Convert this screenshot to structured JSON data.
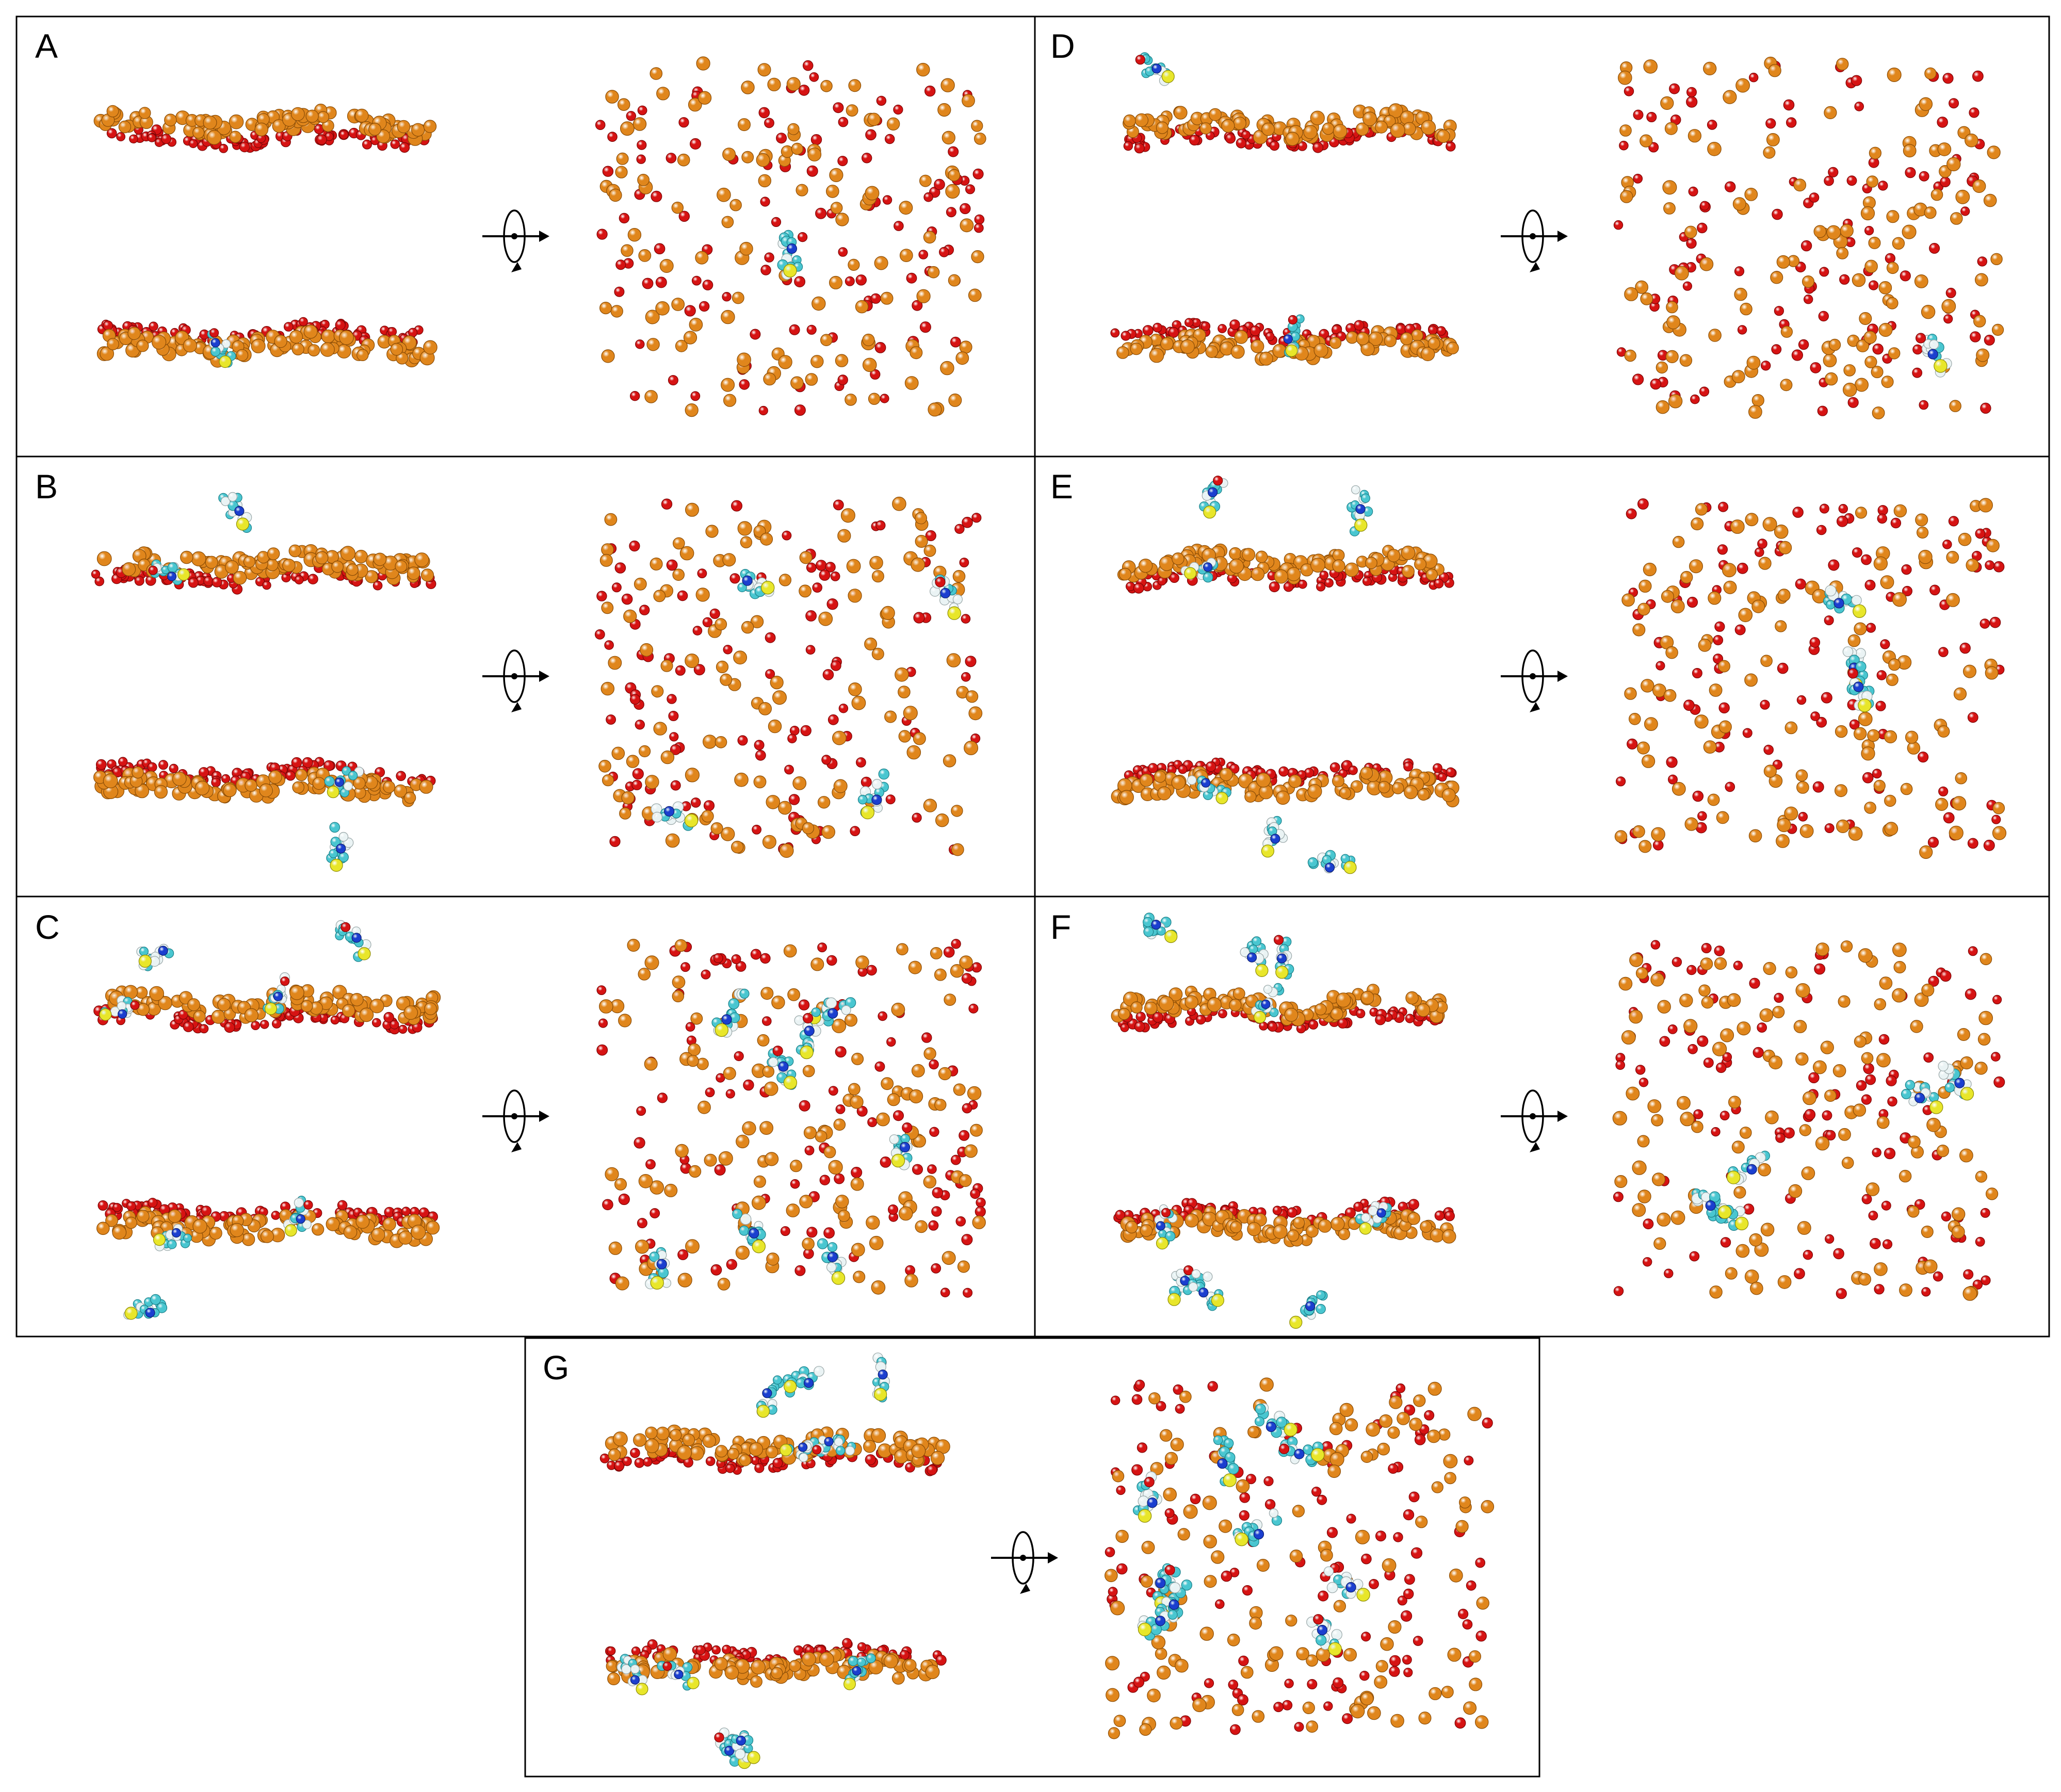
{
  "colors": {
    "phosphorus_bead": "#e0861c",
    "oxygen_bead": "#d61313",
    "carbon_atom": "#49c6d0",
    "hydrogen_atom": "#eaf3f4",
    "nitrogen_atom": "#1b3fcf",
    "sulfur_atom": "#e8e62a",
    "frame": "#000000",
    "background": "#ffffff"
  },
  "icons": {
    "rotation": "rotation-arrow-icon"
  },
  "panels": [
    {
      "label": "A",
      "free_molecules": 0,
      "surface_molecules": 1
    },
    {
      "label": "B",
      "free_molecules": 2,
      "surface_molecules": 4
    },
    {
      "label": "C",
      "free_molecules": 3,
      "surface_molecules": 8
    },
    {
      "label": "D",
      "free_molecules": 1,
      "surface_molecules": 1
    },
    {
      "label": "E",
      "free_molecules": 4,
      "surface_molecules": 3
    },
    {
      "label": "F",
      "free_molecules": 6,
      "surface_molecules": 5
    },
    {
      "label": "G",
      "free_molecules": 6,
      "surface_molecules": 10
    }
  ]
}
